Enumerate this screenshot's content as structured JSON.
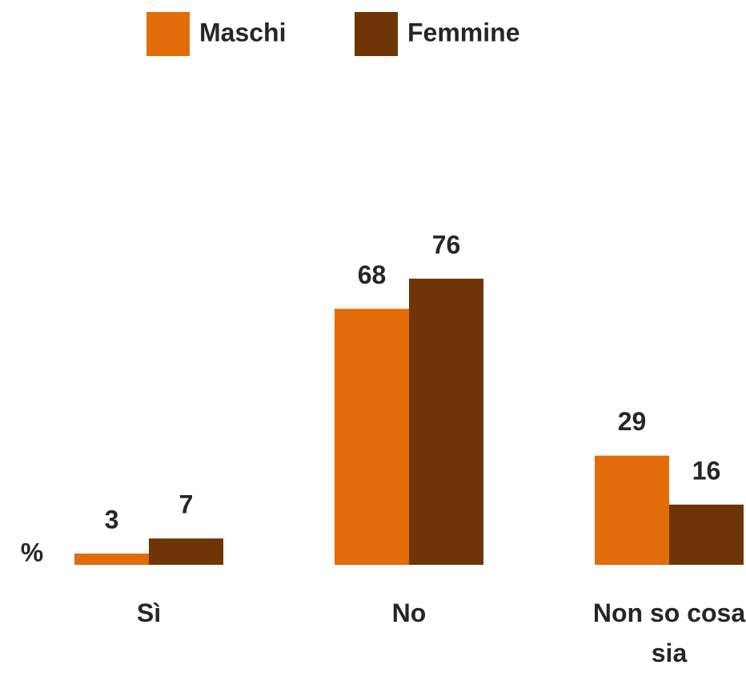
{
  "chart_data": {
    "type": "bar",
    "y_label": "%",
    "categories": [
      "Sì",
      "No",
      "Non so cosa sia"
    ],
    "series": [
      {
        "name": "Maschi",
        "color": "#e36c0a",
        "values": [
          3,
          68,
          29
        ]
      },
      {
        "name": "Femmine",
        "color": "#6e3506",
        "values": [
          7,
          76,
          16
        ]
      }
    ],
    "ylim": [
      0,
      80
    ],
    "legend": "top"
  }
}
